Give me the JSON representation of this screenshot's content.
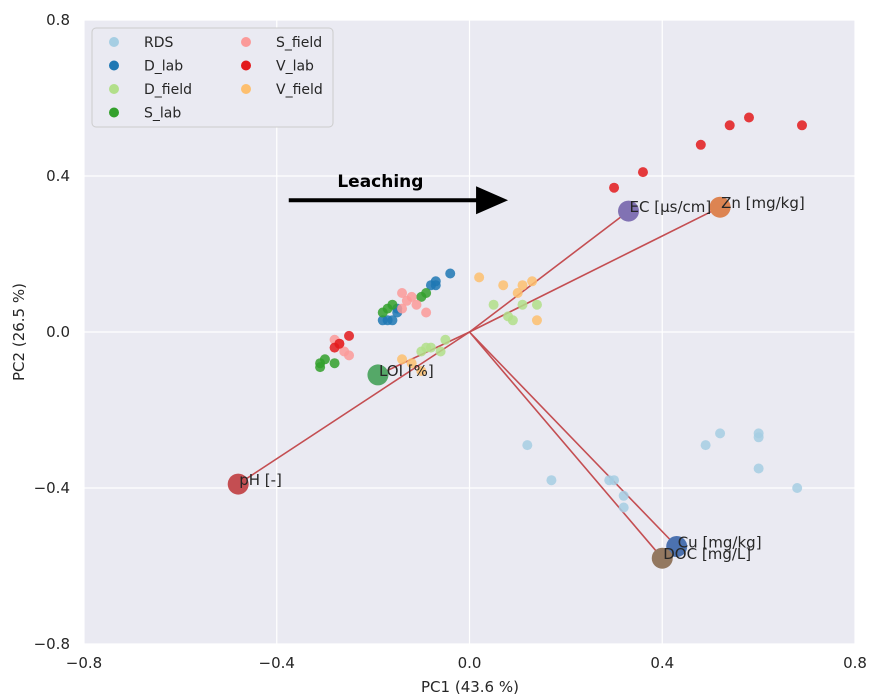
{
  "chart_data": {
    "type": "scatter",
    "xlabel": "PC1 (43.6 %)",
    "ylabel": "PC2 (26.5 %)",
    "xlim": [
      -0.8,
      0.8
    ],
    "ylim": [
      -0.8,
      0.8
    ],
    "xticks": [
      -0.8,
      -0.4,
      0.0,
      0.4,
      0.8
    ],
    "xtick_labels": [
      "−0.8",
      "−0.4",
      "0.0",
      "0.4",
      "0.8"
    ],
    "yticks": [
      -0.8,
      -0.4,
      0.0,
      0.4,
      0.8
    ],
    "ytick_labels": [
      "−0.8",
      "−0.4",
      "0.0",
      "0.4",
      "0.8"
    ],
    "grid": true,
    "legend_position": "top-left",
    "series": [
      {
        "name": "RDS",
        "color": "#a6cee3",
        "points": [
          [
            0.12,
            -0.29
          ],
          [
            0.17,
            -0.38
          ],
          [
            0.29,
            -0.38
          ],
          [
            0.3,
            -0.38
          ],
          [
            0.32,
            -0.42
          ],
          [
            0.32,
            -0.45
          ],
          [
            0.49,
            -0.29
          ],
          [
            0.52,
            -0.26
          ],
          [
            0.6,
            -0.26
          ],
          [
            0.6,
            -0.27
          ],
          [
            0.6,
            -0.35
          ],
          [
            0.68,
            -0.4
          ]
        ]
      },
      {
        "name": "D_lab",
        "color": "#1f78b4",
        "points": [
          [
            -0.04,
            0.15
          ],
          [
            -0.07,
            0.13
          ],
          [
            -0.07,
            0.12
          ],
          [
            -0.08,
            0.12
          ],
          [
            -0.15,
            0.06
          ],
          [
            -0.15,
            0.05
          ],
          [
            -0.16,
            0.03
          ],
          [
            -0.17,
            0.03
          ],
          [
            -0.18,
            0.03
          ]
        ]
      },
      {
        "name": "D_field",
        "color": "#b2df8a",
        "points": [
          [
            0.05,
            0.07
          ],
          [
            0.11,
            0.07
          ],
          [
            0.14,
            0.07
          ],
          [
            0.08,
            0.04
          ],
          [
            0.09,
            0.03
          ],
          [
            -0.05,
            -0.02
          ],
          [
            -0.06,
            -0.05
          ],
          [
            -0.08,
            -0.04
          ],
          [
            -0.09,
            -0.04
          ],
          [
            -0.1,
            -0.05
          ]
        ]
      },
      {
        "name": "S_lab",
        "color": "#33a02c",
        "points": [
          [
            -0.09,
            0.1
          ],
          [
            -0.1,
            0.09
          ],
          [
            -0.16,
            0.07
          ],
          [
            -0.17,
            0.06
          ],
          [
            -0.18,
            0.05
          ],
          [
            -0.3,
            -0.07
          ],
          [
            -0.31,
            -0.08
          ],
          [
            -0.31,
            -0.09
          ],
          [
            -0.28,
            -0.08
          ]
        ]
      },
      {
        "name": "S_field",
        "color": "#fb9a99",
        "points": [
          [
            -0.14,
            0.1
          ],
          [
            -0.12,
            0.09
          ],
          [
            -0.13,
            0.08
          ],
          [
            -0.11,
            0.07
          ],
          [
            -0.14,
            0.06
          ],
          [
            -0.09,
            0.05
          ],
          [
            -0.28,
            -0.02
          ],
          [
            -0.27,
            -0.03
          ],
          [
            -0.26,
            -0.05
          ],
          [
            -0.25,
            -0.06
          ]
        ]
      },
      {
        "name": "V_lab",
        "color": "#e31a1c",
        "points": [
          [
            0.3,
            0.37
          ],
          [
            0.36,
            0.41
          ],
          [
            0.48,
            0.48
          ],
          [
            0.54,
            0.53
          ],
          [
            0.58,
            0.55
          ],
          [
            0.69,
            0.53
          ],
          [
            -0.25,
            -0.01
          ],
          [
            -0.27,
            -0.03
          ],
          [
            -0.28,
            -0.04
          ]
        ]
      },
      {
        "name": "V_field",
        "color": "#fdbf6f",
        "points": [
          [
            0.02,
            0.14
          ],
          [
            0.07,
            0.12
          ],
          [
            0.11,
            0.12
          ],
          [
            0.13,
            0.13
          ],
          [
            0.1,
            0.1
          ],
          [
            0.14,
            0.03
          ],
          [
            -0.14,
            -0.07
          ],
          [
            -0.12,
            -0.08
          ],
          [
            -0.1,
            -0.1
          ]
        ]
      }
    ],
    "loadings": [
      {
        "label": "EC [µs/cm]",
        "x": 0.33,
        "y": 0.31,
        "color": "#8172b3"
      },
      {
        "label": "Zn [mg/kg]",
        "x": 0.52,
        "y": 0.32,
        "color": "#dd8452"
      },
      {
        "label": "LOI [%]",
        "x": -0.19,
        "y": -0.11,
        "color": "#55a868"
      },
      {
        "label": "pH [-]",
        "x": -0.48,
        "y": -0.39,
        "color": "#c44e52"
      },
      {
        "label": "Cu [mg/kg]",
        "x": 0.43,
        "y": -0.55,
        "color": "#4c72b0"
      },
      {
        "label": "DOC [mg/L]",
        "x": 0.4,
        "y": -0.58,
        "color": "#937860"
      }
    ],
    "annotation": {
      "text": "Leaching",
      "arrow_from": [
        -0.4,
        0.32
      ],
      "arrow_to": [
        0.08,
        0.32
      ]
    }
  }
}
